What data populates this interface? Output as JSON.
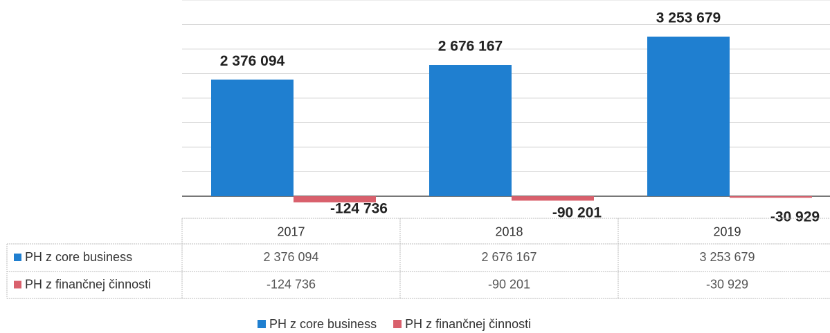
{
  "chart_data": {
    "type": "bar",
    "categories": [
      "2017",
      "2018",
      "2019"
    ],
    "series": [
      {
        "name": "PH z core business",
        "color": "#1f7fd0",
        "values": [
          2376094,
          2676167,
          3253679
        ],
        "value_labels": [
          "2 376 094",
          "2 676 167",
          "3 253 679"
        ]
      },
      {
        "name": "PH z finančnej činnosti",
        "color": "#d9606c",
        "values": [
          -124736,
          -90201,
          -30929
        ],
        "value_labels": [
          "-124 736",
          "-90 201",
          "-30 929"
        ]
      }
    ],
    "ylim": [
      -450000,
      4000000
    ],
    "yticks": [
      0,
      500000,
      1000000,
      1500000,
      2000000,
      2500000,
      3000000,
      3500000,
      4000000
    ],
    "grid": true,
    "data_table": true
  }
}
